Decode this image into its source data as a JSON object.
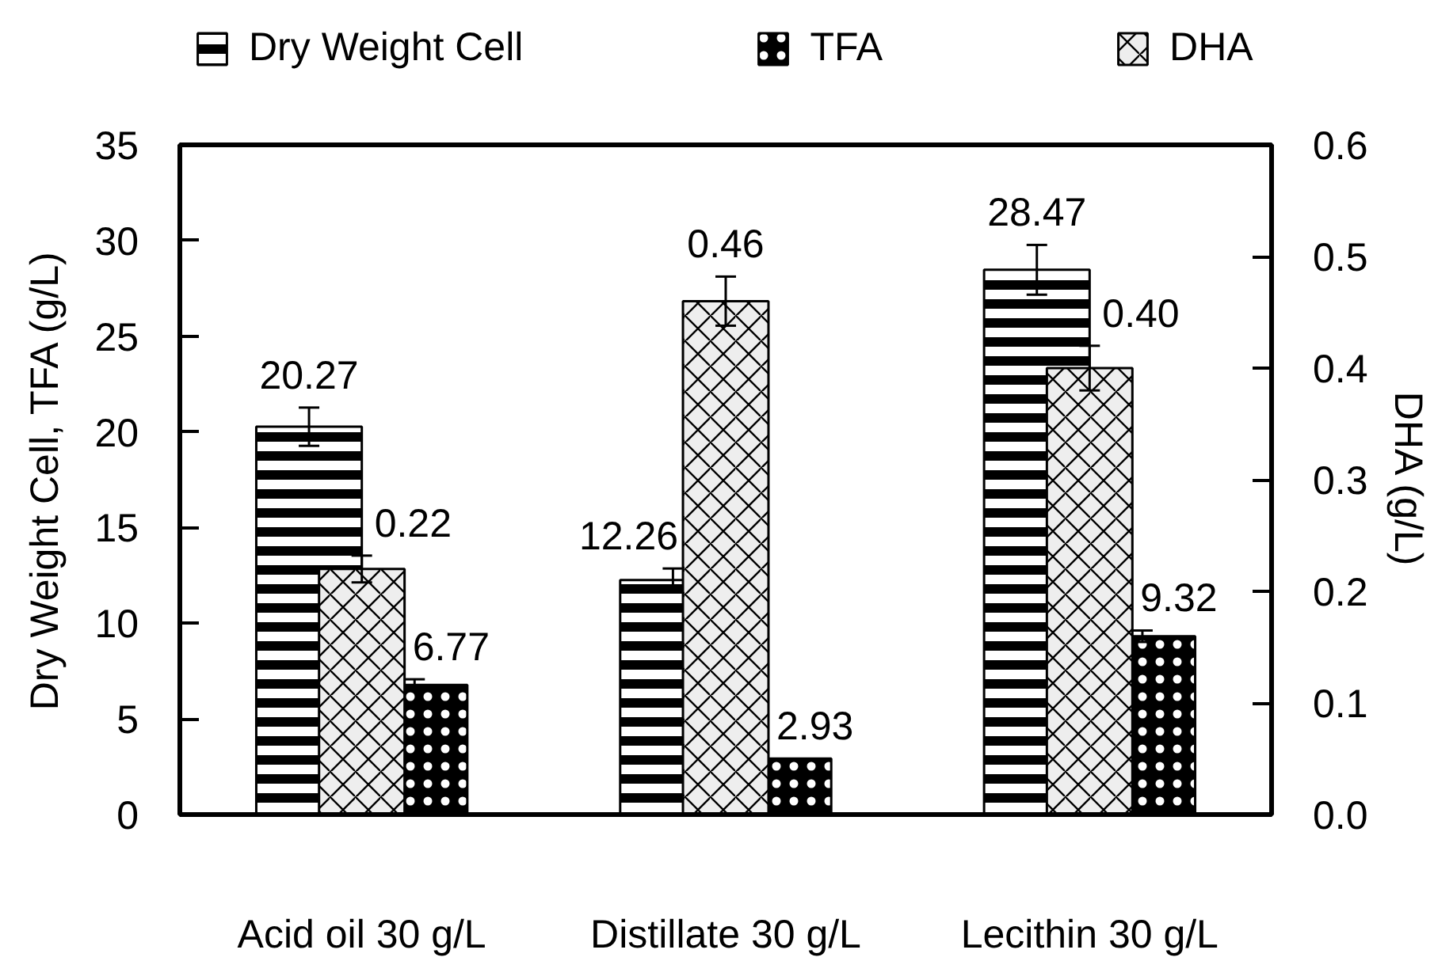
{
  "chart_data": {
    "type": "bar",
    "categories": [
      "Acid oil 30 g/L",
      "Distillate 30 g/L",
      "Lecithin 30 g/L"
    ],
    "ylabel": "Dry Weight Cell, TFA (g/L)",
    "y2label": "DHA (g/L)",
    "ylim": [
      0,
      35
    ],
    "yticks": [
      0,
      5,
      10,
      15,
      20,
      25,
      30,
      35
    ],
    "y2lim": [
      0,
      0.6
    ],
    "y2ticks": [
      {
        "value": 0,
        "label": "0.0"
      },
      0.1,
      0.2,
      0.3,
      0.4,
      0.5,
      0.6
    ],
    "series": [
      {
        "name": "Dry Weight Cell",
        "color": "#000000",
        "values": [
          20.27,
          12.26,
          28.47
        ],
        "errors": [
          1.0,
          0.6,
          1.3
        ],
        "value_labels": [
          "20.27",
          "12.26",
          "28.47"
        ]
      },
      {
        "name": "TFA",
        "color": "#000000",
        "values": [
          6.77,
          2.93,
          9.32
        ],
        "errors": [
          0.3,
          null,
          0.3
        ],
        "value_labels": [
          "6.77",
          "2.93",
          "9.32"
        ]
      },
      {
        "name": "DHA",
        "axis": "y2",
        "color": "#eeeeee",
        "values": [
          0.22,
          0.46,
          0.4
        ],
        "errors": [
          0.012,
          0.022,
          0.02
        ],
        "value_labels": [
          "0.22",
          "0.46",
          "0.40"
        ]
      }
    ],
    "legend": "top",
    "grid": false
  }
}
